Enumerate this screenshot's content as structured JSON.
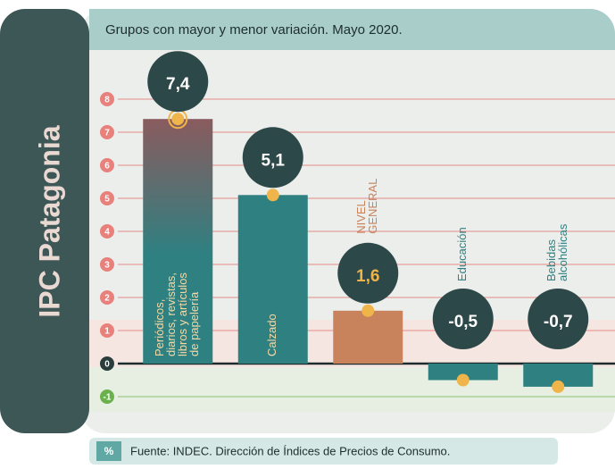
{
  "side_title": "IPC Patagonia",
  "chart_data": {
    "type": "bar",
    "title": "Grupos con mayor y menor variación. Mayo 2020.",
    "categories": [
      [
        "Periódicos,",
        "diarios, revistas,",
        "libros y artículos",
        "de papelería"
      ],
      [
        "Calzado"
      ],
      [
        "NIVEL",
        "GENERAL"
      ],
      [
        "Educación"
      ],
      [
        "Bebidas",
        "alcohólicas"
      ]
    ],
    "values": [
      7.4,
      5.1,
      1.6,
      -0.5,
      -0.7
    ],
    "value_labels": [
      "7,4",
      "5,1",
      "1,6",
      "-0,5",
      "-0,7"
    ],
    "colors": [
      "#2f8081",
      "#2f8081",
      "#c8825c",
      "#2f8081",
      "#2f8081"
    ],
    "ylim": [
      -1,
      8
    ],
    "yticks": [
      -1,
      0,
      1,
      2,
      3,
      4,
      5,
      6,
      7,
      8
    ],
    "grid": true
  },
  "footer": {
    "badge": "%",
    "source": "Fuente: INDEC. Dirección de Índices de Precios de Consumo."
  }
}
